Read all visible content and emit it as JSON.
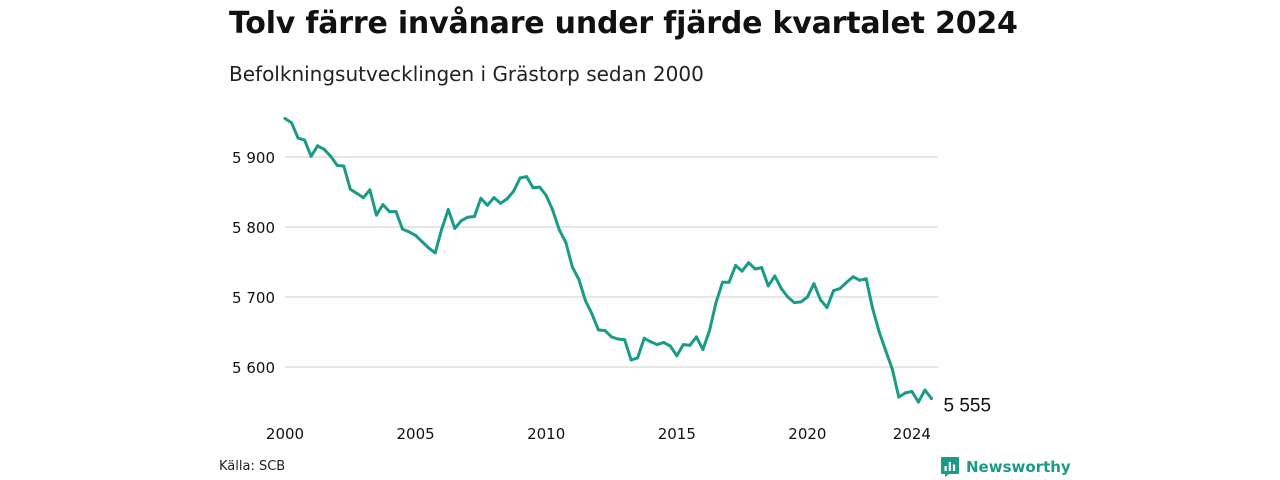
{
  "header": {
    "title": "Tolv färre invånare under fjärde kvartalet 2024",
    "subtitle": "Befolkningsutvecklingen i Grästorp sedan 2000"
  },
  "footer": {
    "source": "Källa: SCB",
    "brand": "Newsworthy",
    "brand_icon": "bar-chart-icon"
  },
  "colors": {
    "line": "#1a9b87",
    "grid": "#dddddd",
    "text": "#111111"
  },
  "chart_data": {
    "type": "line",
    "title": "Tolv färre invånare under fjärde kvartalet 2024",
    "subtitle": "Befolkningsutvecklingen i Grästorp sedan 2000",
    "xlabel": "",
    "ylabel": "",
    "xlim": [
      2000,
      2025
    ],
    "ylim": [
      5530,
      5960
    ],
    "grid": true,
    "yticks": [
      5600,
      5700,
      5800,
      5900
    ],
    "ytick_labels": [
      "5 600",
      "5 700",
      "5 800",
      "5 900"
    ],
    "xticks": [
      2000,
      2005,
      2010,
      2015,
      2020,
      2024
    ],
    "xtick_labels": [
      "2000",
      "2005",
      "2010",
      "2015",
      "2020",
      "2024"
    ],
    "end_label": "5 555",
    "series": [
      {
        "x": [
          "2000Q1",
          "2000Q2",
          "2000Q3",
          "2000Q4",
          "2001Q1",
          "2001Q2",
          "2001Q3",
          "2001Q4",
          "2002Q1",
          "2002Q2",
          "2002Q3",
          "2002Q4",
          "2003Q1",
          "2003Q2",
          "2003Q3",
          "2003Q4",
          "2004Q1",
          "2004Q2",
          "2004Q3",
          "2004Q4",
          "2005Q1",
          "2005Q2",
          "2005Q3",
          "2005Q4",
          "2006Q1",
          "2006Q2",
          "2006Q3",
          "2006Q4",
          "2007Q1",
          "2007Q2",
          "2007Q3",
          "2007Q4",
          "2008Q1",
          "2008Q2",
          "2008Q3",
          "2008Q4",
          "2009Q1",
          "2009Q2",
          "2009Q3",
          "2009Q4",
          "2010Q1",
          "2010Q2",
          "2010Q3",
          "2010Q4",
          "2011Q1",
          "2011Q2",
          "2011Q3",
          "2011Q4",
          "2012Q1",
          "2012Q2",
          "2012Q3",
          "2012Q4",
          "2013Q1",
          "2013Q2",
          "2013Q3",
          "2013Q4",
          "2014Q1",
          "2014Q2",
          "2014Q3",
          "2014Q4",
          "2015Q1",
          "2015Q2",
          "2015Q3",
          "2015Q4",
          "2016Q1",
          "2016Q2",
          "2016Q3",
          "2016Q4",
          "2017Q1",
          "2017Q2",
          "2017Q3",
          "2017Q4",
          "2018Q1",
          "2018Q2",
          "2018Q3",
          "2018Q4",
          "2019Q1",
          "2019Q2",
          "2019Q3",
          "2019Q4",
          "2020Q1",
          "2020Q2",
          "2020Q3",
          "2020Q4",
          "2021Q1",
          "2021Q2",
          "2021Q3",
          "2021Q4",
          "2022Q1",
          "2022Q2",
          "2022Q3",
          "2022Q4",
          "2023Q1",
          "2023Q2",
          "2023Q3",
          "2023Q4",
          "2024Q1",
          "2024Q2",
          "2024Q3",
          "2024Q4"
        ],
        "values": [
          5955,
          5949,
          5927,
          5924,
          5901,
          5916,
          5911,
          5901,
          5888,
          5887,
          5854,
          5848,
          5842,
          5853,
          5817,
          5832,
          5822,
          5822,
          5797,
          5793,
          5788,
          5779,
          5770,
          5763,
          5797,
          5825,
          5798,
          5809,
          5814,
          5815,
          5841,
          5831,
          5842,
          5834,
          5840,
          5851,
          5870,
          5872,
          5856,
          5857,
          5845,
          5824,
          5796,
          5778,
          5743,
          5725,
          5695,
          5676,
          5653,
          5652,
          5643,
          5640,
          5639,
          5610,
          5613,
          5641,
          5636,
          5632,
          5635,
          5630,
          5616,
          5632,
          5631,
          5643,
          5625,
          5652,
          5692,
          5721,
          5721,
          5745,
          5737,
          5749,
          5740,
          5742,
          5716,
          5730,
          5712,
          5700,
          5692,
          5693,
          5700,
          5719,
          5696,
          5685,
          5709,
          5712,
          5721,
          5729,
          5724,
          5726,
          5683,
          5650,
          5623,
          5597,
          5557,
          5563,
          5565,
          5550,
          5567,
          5555
        ]
      }
    ]
  }
}
